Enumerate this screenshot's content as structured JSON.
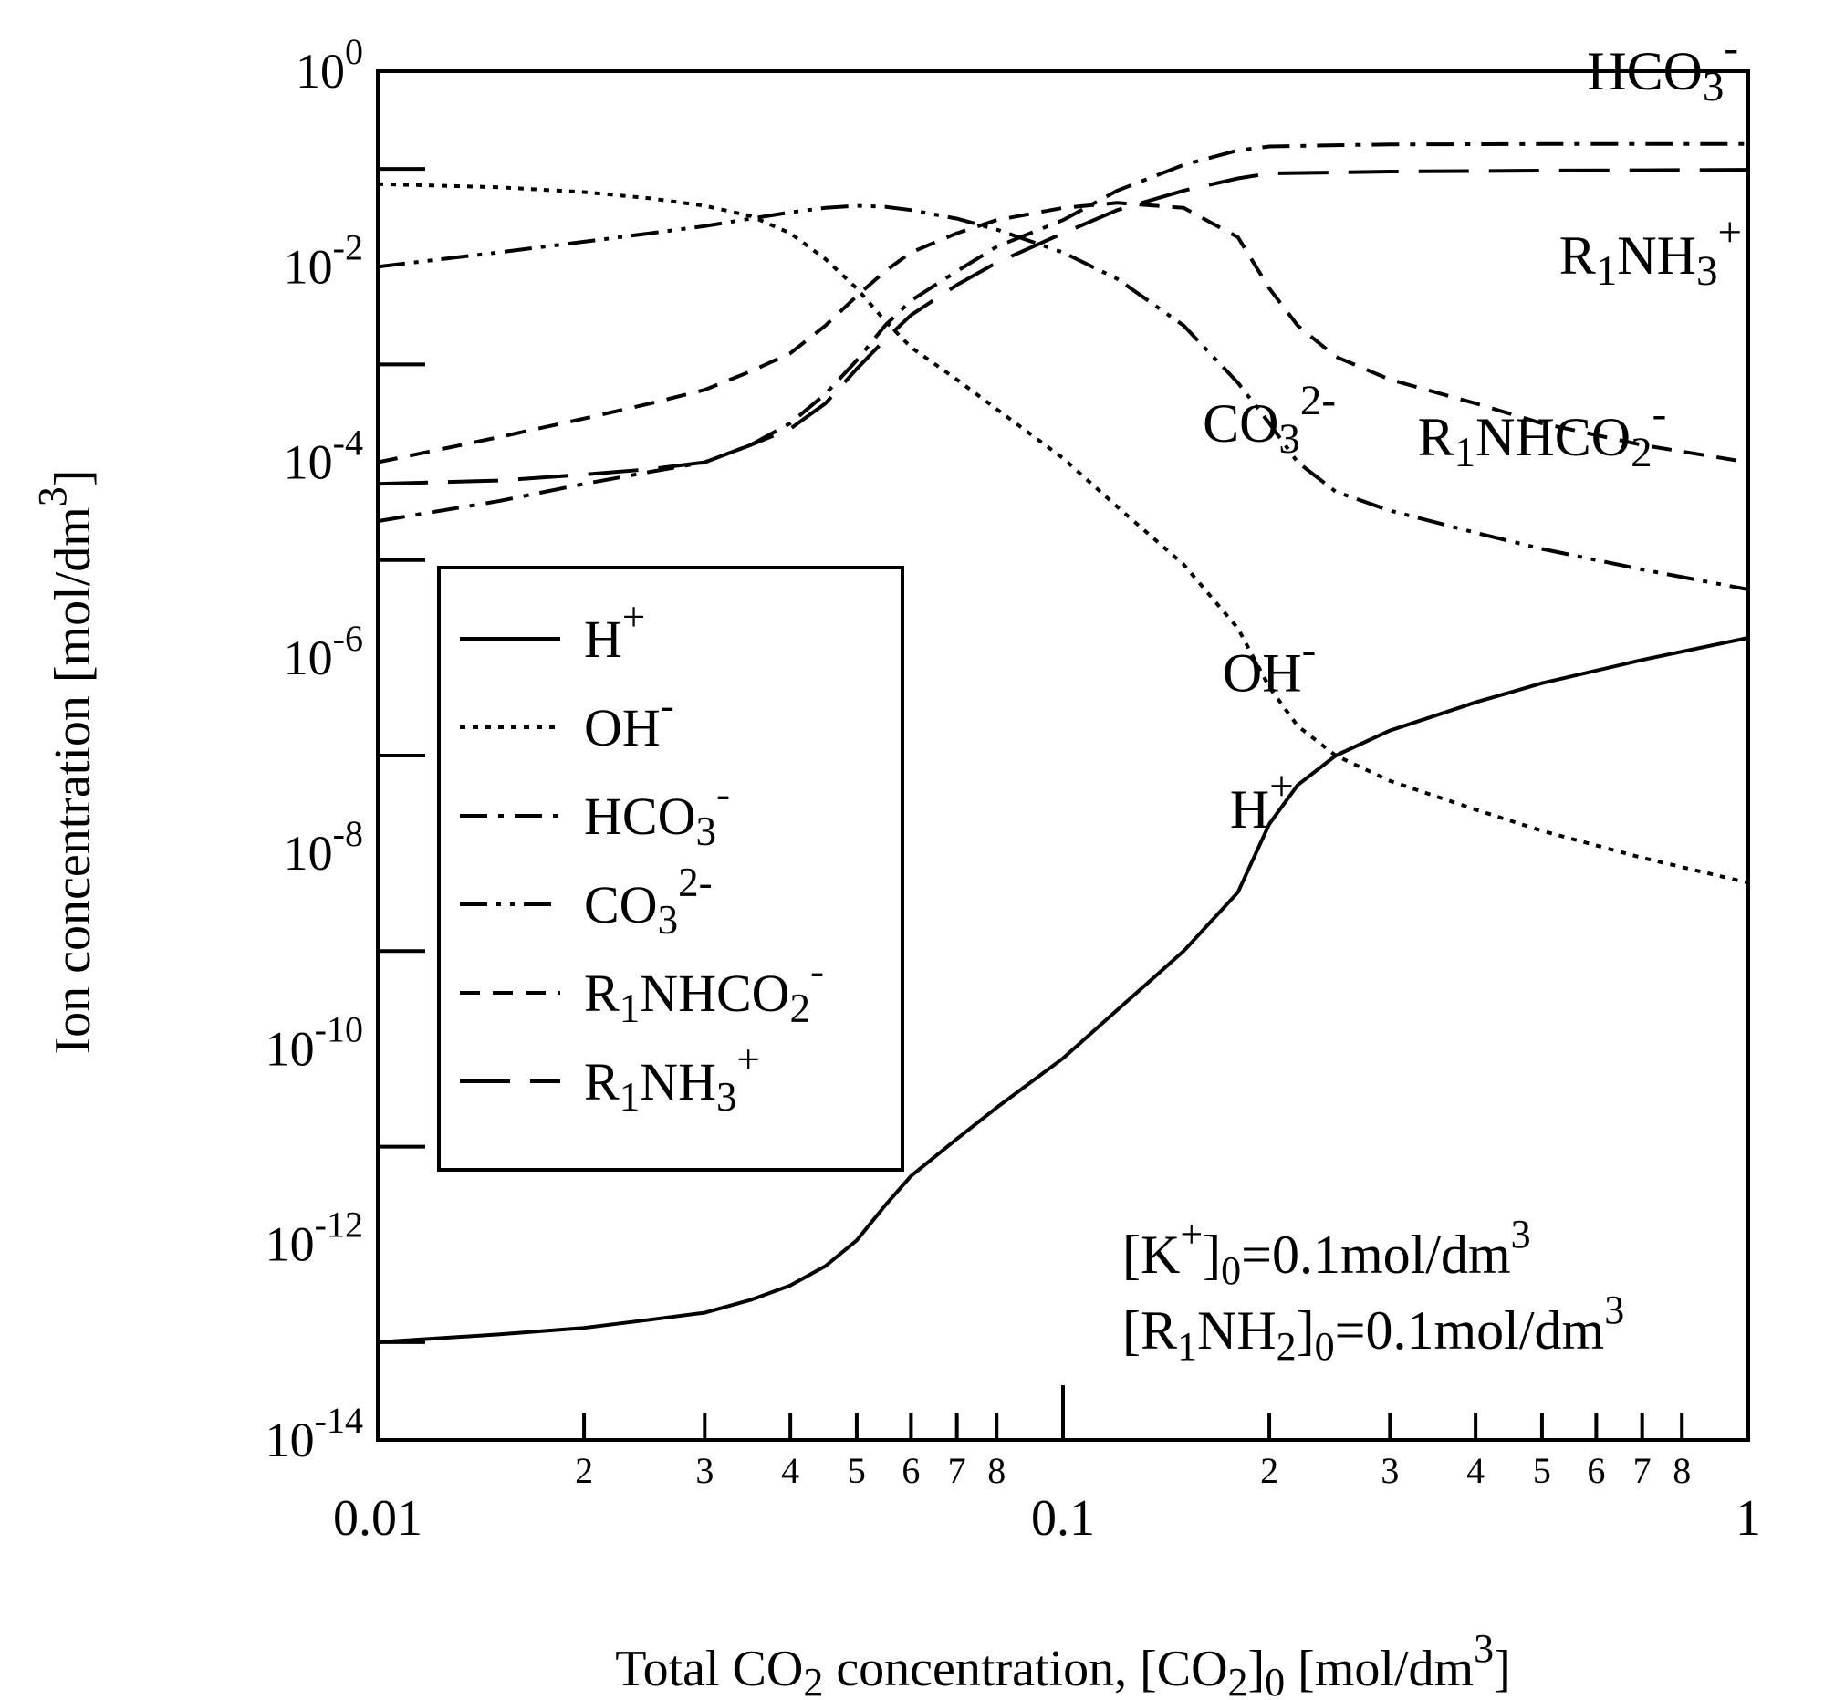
{
  "chart_data": {
    "type": "line",
    "xscale": "log",
    "yscale": "log",
    "xlim": [
      0.01,
      1
    ],
    "ylim": [
      1e-14,
      1
    ],
    "xlabel": {
      "pre": "Total CO",
      "sub1": "2",
      "mid": " concentration, [CO",
      "sub2": "2",
      "post": "]",
      "sub3": "0",
      "unit": " [mol/dm",
      "sup": "3",
      "close": "]"
    },
    "ylabel": {
      "text": "Ion concentration [mol/dm",
      "sup": "3",
      "close": "]"
    },
    "x_major_ticks": [
      {
        "value": 0.01,
        "label": "0.01"
      },
      {
        "value": 0.1,
        "label": "0.1"
      },
      {
        "value": 1,
        "label": "1"
      }
    ],
    "x_minor_ticks": [
      {
        "value": 0.02,
        "label": "2"
      },
      {
        "value": 0.03,
        "label": "3"
      },
      {
        "value": 0.04,
        "label": "4"
      },
      {
        "value": 0.05,
        "label": "5"
      },
      {
        "value": 0.06,
        "label": "6"
      },
      {
        "value": 0.07,
        "label": "7"
      },
      {
        "value": 0.08,
        "label": "8"
      },
      {
        "value": 0.2,
        "label": "2"
      },
      {
        "value": 0.3,
        "label": "3"
      },
      {
        "value": 0.4,
        "label": "4"
      },
      {
        "value": 0.5,
        "label": "5"
      },
      {
        "value": 0.6,
        "label": "6"
      },
      {
        "value": 0.7,
        "label": "7"
      },
      {
        "value": 0.8,
        "label": "8"
      }
    ],
    "y_major_ticks": [
      {
        "exp": 0,
        "base": "10",
        "sup": "0"
      },
      {
        "exp": -2,
        "base": "10",
        "sup": "-2"
      },
      {
        "exp": -4,
        "base": "10",
        "sup": "-4"
      },
      {
        "exp": -6,
        "base": "10",
        "sup": "-6"
      },
      {
        "exp": -8,
        "base": "10",
        "sup": "-8"
      },
      {
        "exp": -10,
        "base": "10",
        "sup": "-10"
      },
      {
        "exp": -12,
        "base": "10",
        "sup": "-12"
      },
      {
        "exp": -14,
        "base": "10",
        "sup": "-14"
      }
    ],
    "series": [
      {
        "key": "h",
        "dash": "solid",
        "label": {
          "base": "H",
          "sub": "",
          "sup": "+"
        },
        "x": [
          0.01,
          0.015,
          0.02,
          0.025,
          0.03,
          0.035,
          0.04,
          0.045,
          0.05,
          0.055,
          0.06,
          0.07,
          0.08,
          0.1,
          0.12,
          0.15,
          0.18,
          0.2,
          0.22,
          0.25,
          0.3,
          0.4,
          0.5,
          0.7,
          1.0
        ],
        "y": [
          1e-13,
          1.2e-13,
          1.4e-13,
          1.7e-13,
          2e-13,
          2.7e-13,
          3.8e-13,
          6e-13,
          1.1e-12,
          2.5e-12,
          5e-12,
          1.2e-11,
          2.5e-11,
          8e-11,
          2.5e-10,
          1e-09,
          4e-09,
          2e-08,
          5e-08,
          1e-07,
          1.8e-07,
          3.5e-07,
          5.5e-07,
          9.5e-07,
          1.6e-06
        ]
      },
      {
        "key": "oh",
        "dash": "dotted",
        "label": {
          "base": "OH",
          "sub": "",
          "sup": "-"
        },
        "x": [
          0.01,
          0.015,
          0.02,
          0.025,
          0.03,
          0.035,
          0.04,
          0.045,
          0.05,
          0.055,
          0.06,
          0.07,
          0.08,
          0.1,
          0.12,
          0.15,
          0.18,
          0.2,
          0.22,
          0.25,
          0.3,
          0.4,
          0.5,
          0.7,
          1.0
        ],
        "y": [
          0.07,
          0.065,
          0.058,
          0.05,
          0.042,
          0.033,
          0.022,
          0.012,
          0.006,
          0.0028,
          0.0015,
          0.0007,
          0.00035,
          0.00011,
          3.5e-05,
          9e-06,
          2e-06,
          5e-07,
          2e-07,
          1e-07,
          5.5e-08,
          2.8e-08,
          1.7e-08,
          9e-09,
          5e-09
        ]
      },
      {
        "key": "hco3",
        "dash": "dashdot",
        "label": {
          "base": "HCO",
          "sub": "3",
          "sup": "-"
        },
        "x": [
          0.01,
          0.015,
          0.02,
          0.025,
          0.03,
          0.035,
          0.04,
          0.045,
          0.05,
          0.055,
          0.06,
          0.07,
          0.08,
          0.1,
          0.12,
          0.15,
          0.18,
          0.2,
          0.25,
          0.3,
          0.5,
          0.7,
          1.0
        ],
        "y": [
          2.5e-05,
          4e-05,
          6e-05,
          8e-05,
          0.0001,
          0.00015,
          0.00025,
          0.0005,
          0.0011,
          0.0025,
          0.0045,
          0.009,
          0.016,
          0.03,
          0.06,
          0.11,
          0.155,
          0.17,
          0.175,
          0.178,
          0.18,
          0.18,
          0.18
        ]
      },
      {
        "key": "co3",
        "dash": "dashdotdot",
        "label": {
          "base": "CO",
          "sub": "3",
          "sup": "2-"
        },
        "x": [
          0.01,
          0.015,
          0.02,
          0.025,
          0.03,
          0.035,
          0.04,
          0.045,
          0.05,
          0.055,
          0.06,
          0.07,
          0.08,
          0.1,
          0.12,
          0.15,
          0.18,
          0.2,
          0.22,
          0.25,
          0.3,
          0.4,
          0.5,
          0.7,
          1.0
        ],
        "y": [
          0.01,
          0.014,
          0.018,
          0.022,
          0.026,
          0.031,
          0.036,
          0.04,
          0.042,
          0.041,
          0.038,
          0.031,
          0.024,
          0.014,
          0.0075,
          0.0025,
          0.00065,
          0.00025,
          0.0001,
          5e-05,
          3.2e-05,
          1.9e-05,
          1.3e-05,
          8e-06,
          5e-06
        ]
      },
      {
        "key": "carb",
        "dash": "dashed",
        "label": {
          "base": "R",
          "sub": "1",
          "mid": "NHCO",
          "sub2": "2",
          "sup": "-"
        },
        "x": [
          0.01,
          0.015,
          0.02,
          0.025,
          0.03,
          0.035,
          0.04,
          0.045,
          0.05,
          0.055,
          0.06,
          0.07,
          0.08,
          0.1,
          0.12,
          0.15,
          0.18,
          0.2,
          0.22,
          0.25,
          0.3,
          0.4,
          0.5,
          0.7,
          1.0
        ],
        "y": [
          0.0001,
          0.00018,
          0.00028,
          0.0004,
          0.00055,
          0.00085,
          0.0013,
          0.0025,
          0.005,
          0.009,
          0.014,
          0.022,
          0.03,
          0.04,
          0.045,
          0.04,
          0.02,
          0.006,
          0.0025,
          0.0012,
          0.0007,
          0.0004,
          0.00025,
          0.00015,
          0.0001
        ]
      },
      {
        "key": "amine",
        "dash": "longdash",
        "label": {
          "base": "R",
          "sub": "1",
          "mid": "NH",
          "sub2": "3",
          "sup": "+"
        },
        "x": [
          0.01,
          0.015,
          0.02,
          0.025,
          0.03,
          0.035,
          0.04,
          0.045,
          0.05,
          0.055,
          0.06,
          0.07,
          0.08,
          0.1,
          0.12,
          0.15,
          0.18,
          0.2,
          0.25,
          0.3,
          0.5,
          0.7,
          1.0
        ],
        "y": [
          6e-05,
          6.5e-05,
          7.5e-05,
          8.5e-05,
          0.0001,
          0.00015,
          0.00022,
          0.0004,
          0.0009,
          0.0018,
          0.0032,
          0.0065,
          0.011,
          0.022,
          0.038,
          0.06,
          0.08,
          0.09,
          0.092,
          0.094,
          0.096,
          0.097,
          0.098
        ]
      }
    ],
    "curve_labels": [
      {
        "series": "hco3",
        "base": "HCO",
        "sub": "3",
        "sup": "-",
        "x": 0.75,
        "y": 1.0
      },
      {
        "series": "amine",
        "base": "R",
        "sub": "1",
        "mid": "NH",
        "sub2": "3",
        "sup": "+",
        "x": 0.72,
        "y": 0.013
      },
      {
        "series": "co3",
        "base": "CO",
        "sub": "3",
        "sup": "2-",
        "x": 0.2,
        "y": 0.00025
      },
      {
        "series": "carb",
        "base": "R",
        "sub": "1",
        "mid": "NHCO",
        "sub2": "2",
        "sup": "-",
        "x": 0.5,
        "y": 0.00018
      },
      {
        "series": "oh",
        "base": "OH",
        "sub": "",
        "sup": "-",
        "x": 0.2,
        "y": 7e-07
      },
      {
        "series": "h",
        "base": "H",
        "sub": "",
        "sup": "+",
        "x": 0.195,
        "y": 2.8e-08
      }
    ],
    "legend_position": "center-left",
    "annotations": [
      {
        "key": "k",
        "pre": "[K",
        "sup": "+",
        "post": "]",
        "sub": "0",
        "value": "=0.1mol/dm",
        "sup2": "3"
      },
      {
        "key": "r",
        "pre": "[R",
        "sub1": "1",
        "mid": "NH",
        "sub2": "2",
        "post": "]",
        "sub": "0",
        "value": "=0.1mol/dm",
        "sup2": "3"
      }
    ]
  }
}
